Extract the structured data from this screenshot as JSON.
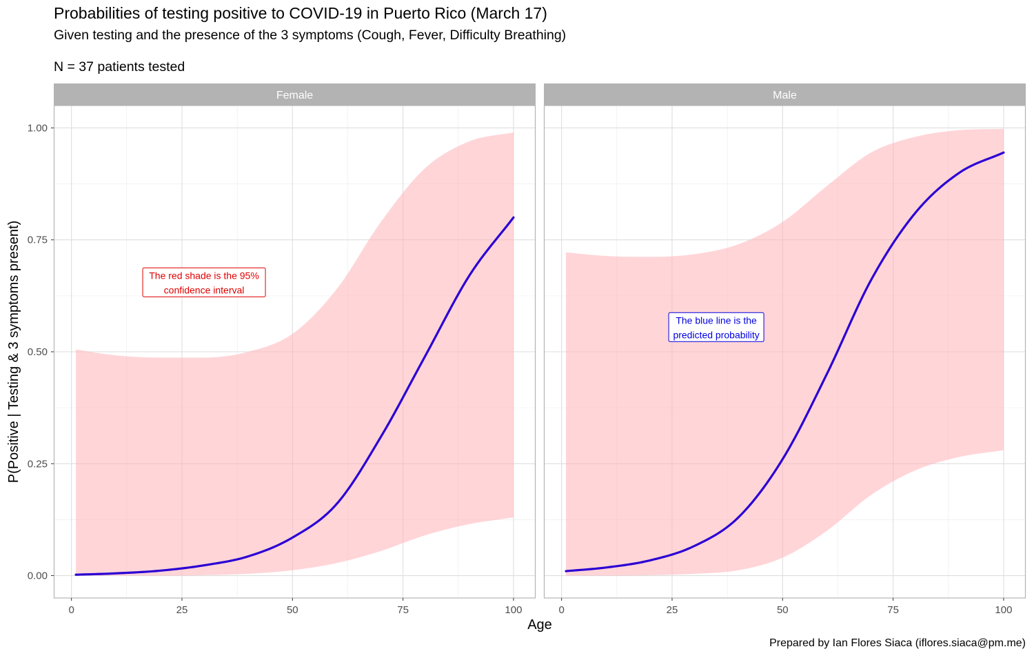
{
  "title": "Probabilities of testing positive to COVID-19 in Puerto Rico (March 17)",
  "subtitle": "Given testing and the presence of the 3 symptoms (Cough, Fever, Difficulty Breathing)",
  "note": "N = 37 patients tested",
  "caption": "Prepared by Ian Flores Siaca (iflores.siaca@pm.me)",
  "colors": {
    "ribbon": "#ffb3b8",
    "line": "#2a00d4",
    "strip": "#b3b3b3",
    "annot_red": "#e00000",
    "annot_blue": "#0000e0"
  },
  "chart_data": {
    "type": "line",
    "xlabel": "Age",
    "ylabel": "P(Positive | Testing & 3 symptoms present)",
    "xlim": [
      -4,
      105
    ],
    "ylim": [
      -0.05,
      1.05
    ],
    "x_ticks": [
      0,
      25,
      50,
      75,
      100
    ],
    "x_tick_labels": [
      "0",
      "25",
      "50",
      "75",
      "100"
    ],
    "y_ticks": [
      0,
      0.25,
      0.5,
      0.75,
      1.0
    ],
    "y_tick_labels": [
      "0.00",
      "0.25",
      "0.50",
      "0.75",
      "1.00"
    ],
    "grid": true,
    "facets": [
      {
        "name": "Female",
        "x": [
          1,
          10,
          20,
          30,
          40,
          50,
          60,
          70,
          80,
          90,
          100
        ],
        "fit": [
          0.002,
          0.005,
          0.011,
          0.023,
          0.043,
          0.085,
          0.16,
          0.31,
          0.49,
          0.67,
          0.8
        ],
        "lower": [
          0.0,
          0.0,
          0.0,
          0.001,
          0.004,
          0.012,
          0.028,
          0.055,
          0.09,
          0.115,
          0.13
        ],
        "upper": [
          0.505,
          0.492,
          0.487,
          0.487,
          0.5,
          0.54,
          0.64,
          0.79,
          0.91,
          0.97,
          0.99
        ],
        "annotation": {
          "lines": [
            "The red shade is the 95%",
            "confidence interval"
          ],
          "x": 30,
          "y": 0.655
        }
      },
      {
        "name": "Male",
        "x": [
          1,
          10,
          20,
          30,
          40,
          50,
          60,
          70,
          80,
          90,
          100
        ],
        "fit": [
          0.01,
          0.018,
          0.034,
          0.066,
          0.13,
          0.26,
          0.45,
          0.66,
          0.81,
          0.9,
          0.945
        ],
        "lower": [
          0.0,
          0.0,
          0.001,
          0.004,
          0.012,
          0.04,
          0.1,
          0.18,
          0.235,
          0.265,
          0.28
        ],
        "upper": [
          0.722,
          0.714,
          0.712,
          0.718,
          0.74,
          0.79,
          0.87,
          0.945,
          0.98,
          0.995,
          0.998
        ],
        "annotation": {
          "lines": [
            "The blue line is the",
            "predicted probability"
          ],
          "x": 35,
          "y": 0.555
        }
      }
    ]
  }
}
